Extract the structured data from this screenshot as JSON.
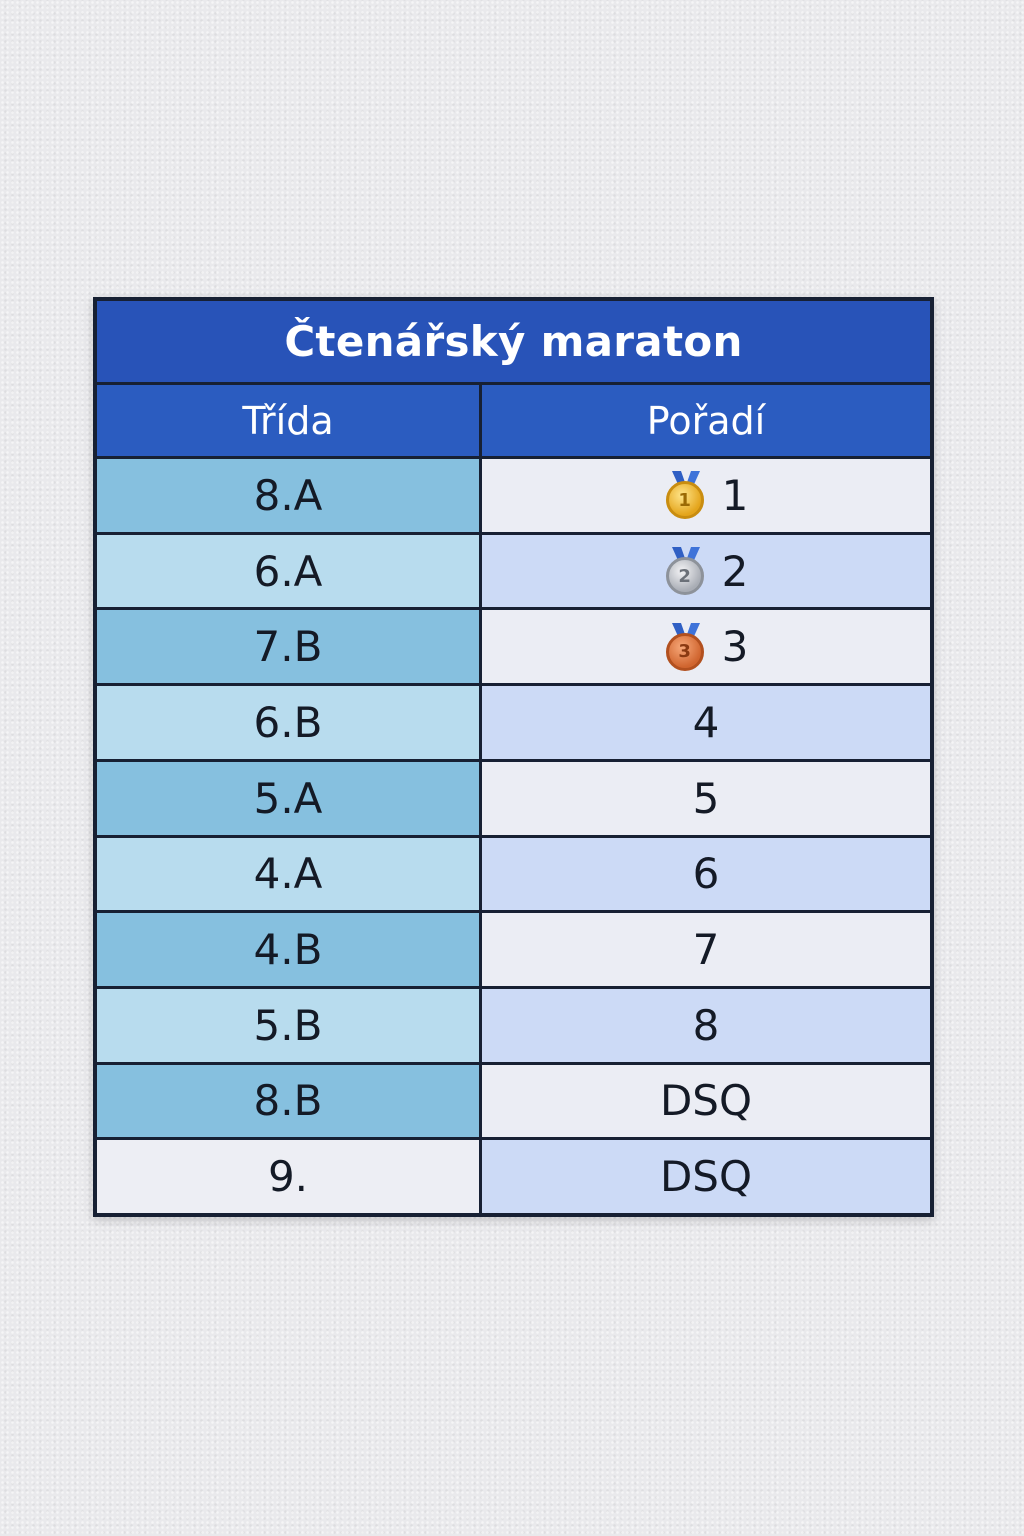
{
  "table": {
    "title": "Čtenářský maraton",
    "headers": [
      "Třída",
      "Pořadí"
    ],
    "rows": [
      {
        "class": "8.A",
        "rank": "1",
        "medal": "gold",
        "medal_num": "1"
      },
      {
        "class": "6.A",
        "rank": "2",
        "medal": "silver",
        "medal_num": "2"
      },
      {
        "class": "7.B",
        "rank": "3",
        "medal": "bronze",
        "medal_num": "3"
      },
      {
        "class": "6.B",
        "rank": "4"
      },
      {
        "class": "5.A",
        "rank": "5"
      },
      {
        "class": "4.A",
        "rank": "6"
      },
      {
        "class": "4.B",
        "rank": "7"
      },
      {
        "class": "5.B",
        "rank": "8"
      },
      {
        "class": "8.B",
        "rank": "DSQ"
      },
      {
        "class": "9.",
        "rank": "DSQ"
      }
    ]
  },
  "colors": {
    "title_bg": "#2853b8",
    "header_bg": "#2b5cc0",
    "border": "#172033",
    "class_dark": "#86c0df",
    "class_light": "#b8dcee",
    "rank_light": "#ebedf4",
    "rank_blue": "#ccdaf6"
  }
}
